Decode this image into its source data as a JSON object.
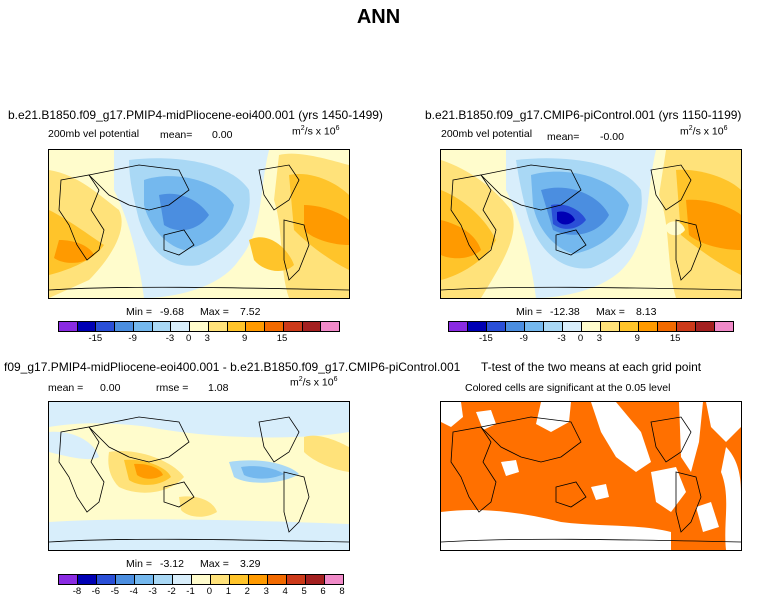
{
  "title": "ANN",
  "panels": [
    {
      "id": "p1",
      "title": "b.e21.B1850.f09_g17.PMIP4-midPliocene-eoi400.001 (yrs 1450-1499)",
      "varname": "200mb vel potential",
      "mean_label": "mean=",
      "mean_value": "0.00",
      "units_base": "m",
      "units_sup1": "2",
      "units_mid": "/s x 10",
      "units_sup2": "6",
      "min_label": "Min =",
      "min_value": "-9.68",
      "max_label": "Max =",
      "max_value": "7.52",
      "colorbar_ticks": [
        "-15",
        "-9",
        "-3",
        "0",
        "3",
        "9",
        "15"
      ]
    },
    {
      "id": "p2",
      "title": "b.e21.B1850.f09_g17.CMIP6-piControl.001 (yrs 1150-1199)",
      "varname": "200mb vel potential",
      "mean_label": "mean=",
      "mean_value": "-0.00",
      "units_base": "m",
      "units_sup1": "2",
      "units_mid": "/s x 10",
      "units_sup2": "6",
      "min_label": "Min =",
      "min_value": "-12.38",
      "max_label": "Max =",
      "max_value": "8.13",
      "colorbar_ticks": [
        "-15",
        "-9",
        "-3",
        "0",
        "3",
        "9",
        "15"
      ]
    },
    {
      "id": "p3",
      "title": "f09_g17.PMIP4-midPliocene-eoi400.001 - b.e21.B1850.f09_g17.CMIP6-piControl.001",
      "mean_label": "mean =",
      "mean_value": "0.00",
      "rmse_label": "rmse =",
      "rmse_value": "1.08",
      "units_base": "m",
      "units_sup1": "2",
      "units_mid": "/s x 10",
      "units_sup2": "6",
      "min_label": "Min =",
      "min_value": "-3.12",
      "max_label": "Max =",
      "max_value": "3.29",
      "colorbar_ticks": [
        "-8",
        "-6",
        "-5",
        "-4",
        "-3",
        "-2",
        "-1",
        "0",
        "1",
        "2",
        "3",
        "4",
        "5",
        "6",
        "8"
      ]
    },
    {
      "id": "p4",
      "title": "T-test of the two means at each grid point",
      "subtitle": "Colored cells are significant at the 0.05 level"
    }
  ],
  "colors": {
    "colorbar": [
      "#8a2be2",
      "#0000b4",
      "#2a4fd7",
      "#4b8ee0",
      "#74b8ee",
      "#a9d8f5",
      "#d8eefb",
      "#fffccc",
      "#ffe27a",
      "#ffc42a",
      "#ff9a00",
      "#f26a00",
      "#cc3a1a",
      "#a32020",
      "#f08ac8"
    ],
    "significant": "#ff7000",
    "land_outline": "#000000"
  }
}
